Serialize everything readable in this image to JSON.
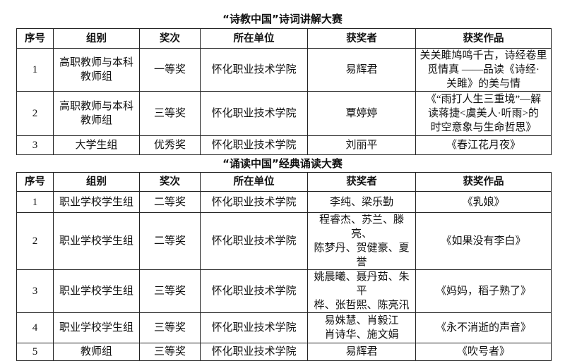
{
  "tables": [
    {
      "title": "“诗教中国”诗词讲解大赛",
      "headers": [
        "序号",
        "组别",
        "奖次",
        "所在单位",
        "获奖者",
        "获奖作品"
      ],
      "rows": [
        {
          "no": "1",
          "group": "高职教师与本科\n教师组",
          "award": "一等奖",
          "unit": "怀化职业技术学院",
          "winner": "易辉君",
          "work": "关关雎鸠鸣千古，诗经卷里\n觅情真 ——品读《诗经·\n关雎》的美与情"
        },
        {
          "no": "2",
          "group": "高职教师与本科\n教师组",
          "award": "三等奖",
          "unit": "怀化职业技术学院",
          "winner": "覃婷婷",
          "work": "《“雨打人生三重境”—解\n读蒋捷<虞美人·听雨>的\n时空意象与生命哲思》"
        },
        {
          "no": "3",
          "group": "大学生组",
          "award": "优秀奖",
          "unit": "怀化职业技术学院",
          "winner": "刘丽平",
          "work": "《春江花月夜》"
        }
      ]
    },
    {
      "title": "“诵读中国”经典诵读大赛",
      "headers": [
        "序号",
        "组别",
        "奖次",
        "所在单位",
        "获奖者",
        "获奖作品"
      ],
      "rows": [
        {
          "no": "1",
          "group": "职业学校学生组",
          "award": "二等奖",
          "unit": "怀化职业技术学院",
          "winner": "李纯、梁乐勤",
          "work": "《乳娘》"
        },
        {
          "no": "2",
          "group": "职业学校学生组",
          "award": "二等奖",
          "unit": "怀化职业技术学院",
          "winner": "程睿杰、苏兰、滕亮、\n陈梦丹、贺健豪、夏誉",
          "work": "《如果没有李白》"
        },
        {
          "no": "3",
          "group": "职业学校学生组",
          "award": "三等奖",
          "unit": "怀化职业技术学院",
          "winner": "姚晨曦、聂丹茹、朱平\n桦、张哲熙、陈亮汛",
          "work": "《妈妈，稻子熟了》"
        },
        {
          "no": "4",
          "group": "职业学校学生组",
          "award": "三等奖",
          "unit": "怀化职业技术学院",
          "winner": "易姝慧、肖毅江\n肖诗华、施文娟",
          "work": "《永不消逝的声音》"
        },
        {
          "no": "5",
          "group": "教师组",
          "award": "三等奖",
          "unit": "怀化职业技术学院",
          "winner": "易辉君",
          "work": "《吹号者》"
        }
      ]
    }
  ]
}
